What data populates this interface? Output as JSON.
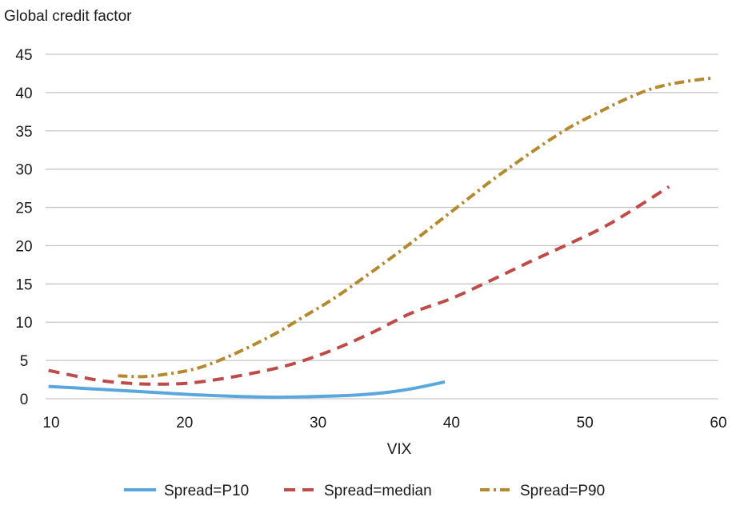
{
  "chart_data": {
    "type": "line",
    "ylabel": "Global credit factor",
    "xlabel": "VIX",
    "xlim": [
      10,
      60
    ],
    "ylim": [
      0,
      45
    ],
    "x_ticks": [
      10,
      20,
      30,
      40,
      50,
      60
    ],
    "y_ticks": [
      0,
      5,
      10,
      15,
      20,
      25,
      30,
      35,
      40,
      45
    ],
    "grid": "horizontal",
    "legend_position": "bottom",
    "series": [
      {
        "name": "Spread=P10",
        "color": "#5aa7dd",
        "style": "solid",
        "points": [
          [
            9.8,
            1.6
          ],
          [
            12,
            1.4
          ],
          [
            15,
            1.1
          ],
          [
            18,
            0.8
          ],
          [
            21,
            0.5
          ],
          [
            24,
            0.3
          ],
          [
            27,
            0.2
          ],
          [
            30,
            0.3
          ],
          [
            33,
            0.5
          ],
          [
            35,
            0.8
          ],
          [
            37,
            1.3
          ],
          [
            39.5,
            2.2
          ]
        ]
      },
      {
        "name": "Spread=median",
        "color": "#be4b48",
        "style": "dashed",
        "points": [
          [
            9.8,
            3.7
          ],
          [
            12,
            2.9
          ],
          [
            14,
            2.3
          ],
          [
            16,
            2.0
          ],
          [
            18,
            1.9
          ],
          [
            20,
            2.0
          ],
          [
            22,
            2.4
          ],
          [
            25,
            3.3
          ],
          [
            28,
            4.5
          ],
          [
            31,
            6.3
          ],
          [
            34,
            8.6
          ],
          [
            37,
            11.2
          ],
          [
            40,
            13.1
          ],
          [
            43,
            15.5
          ],
          [
            46,
            18.0
          ],
          [
            49,
            20.4
          ],
          [
            52,
            23.0
          ],
          [
            56.3,
            27.7
          ]
        ]
      },
      {
        "name": "Spread=P90",
        "color": "#b38a2e",
        "style": "dash-dot",
        "points": [
          [
            15,
            3.0
          ],
          [
            17,
            2.9
          ],
          [
            19,
            3.3
          ],
          [
            21,
            4.0
          ],
          [
            23,
            5.3
          ],
          [
            25,
            6.9
          ],
          [
            27,
            8.7
          ],
          [
            29,
            10.8
          ],
          [
            31,
            12.9
          ],
          [
            33,
            15.3
          ],
          [
            35,
            17.8
          ],
          [
            37,
            20.4
          ],
          [
            39,
            23.1
          ],
          [
            41,
            25.8
          ],
          [
            43,
            28.5
          ],
          [
            45,
            31.0
          ],
          [
            47,
            33.4
          ],
          [
            49,
            35.6
          ],
          [
            51,
            37.4
          ],
          [
            53,
            39.1
          ],
          [
            55,
            40.5
          ],
          [
            57,
            41.3
          ],
          [
            59.5,
            41.9
          ]
        ]
      }
    ]
  }
}
